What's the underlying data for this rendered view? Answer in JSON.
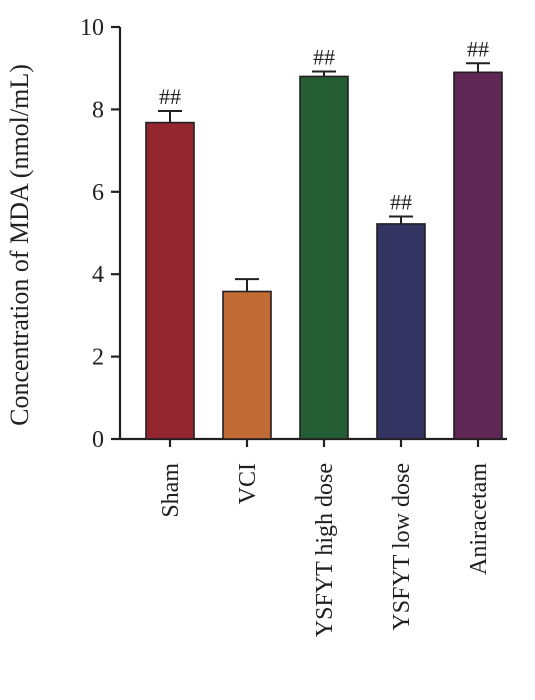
{
  "chart_data": {
    "type": "bar",
    "title": "",
    "xlabel": "",
    "ylabel": "Concentration of MDA (nmol/mL)",
    "ylim": [
      0,
      10
    ],
    "yticks": [
      0,
      2,
      4,
      6,
      8,
      10
    ],
    "categories": [
      "Sham",
      "VCI",
      "YSFYT high dose",
      "YSFYT low dose",
      "Aniracetam"
    ],
    "values": [
      7.68,
      3.58,
      8.8,
      5.22,
      8.9
    ],
    "errors": [
      0.28,
      0.3,
      0.12,
      0.18,
      0.22
    ],
    "annotations": [
      "##",
      "",
      "##",
      "##",
      "##"
    ],
    "colors": [
      "#93262f",
      "#c26b34",
      "#245c33",
      "#333462",
      "#5e2756"
    ],
    "grid": false,
    "legend": "none"
  }
}
